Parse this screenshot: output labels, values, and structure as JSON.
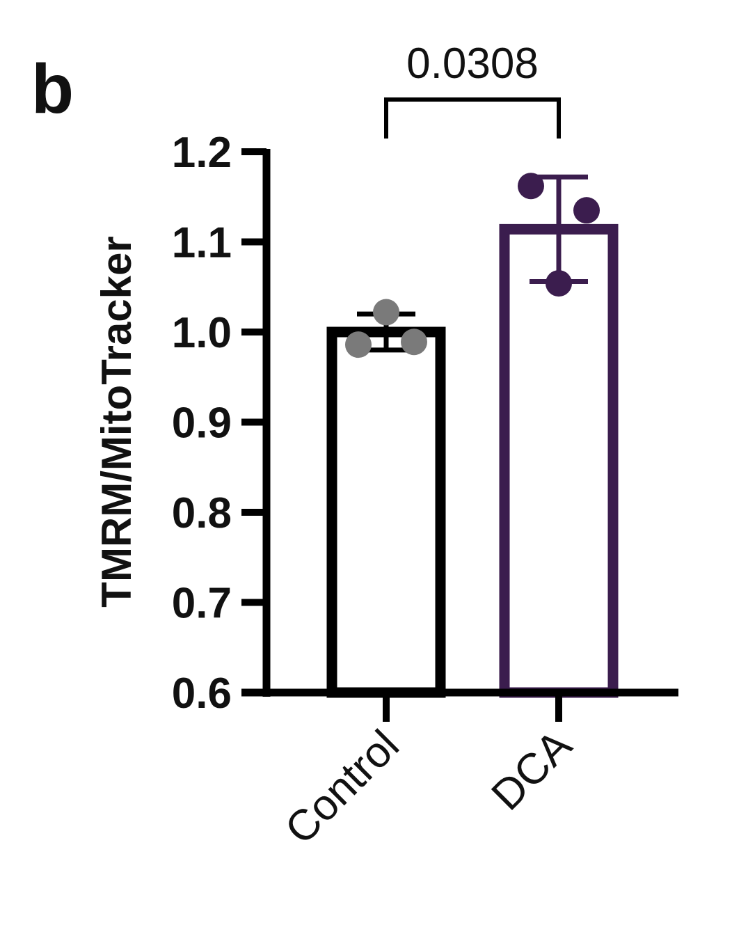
{
  "panel_label": "b",
  "chart_data": {
    "type": "bar",
    "title": "",
    "xlabel": "",
    "ylabel": "TMRM/MitoTracker",
    "ylim": [
      0.6,
      1.2
    ],
    "yticks": [
      0.6,
      0.7,
      0.8,
      0.9,
      1.0,
      1.1,
      1.2
    ],
    "ytick_labels": [
      "0.6",
      "0.7",
      "0.8",
      "0.9",
      "1.0",
      "1.1",
      "1.2"
    ],
    "categories": [
      "Control",
      "DCA"
    ],
    "values": [
      1.0,
      1.114
    ],
    "error": [
      {
        "low": 0.98,
        "high": 1.02
      },
      {
        "low": 1.056,
        "high": 1.172
      }
    ],
    "points": [
      [
        1.022,
        0.986,
        0.989
      ],
      [
        1.162,
        1.054,
        1.135
      ]
    ],
    "colors": {
      "Control": "#000000",
      "DCA": "#3b1d4e",
      "control_points": "#7a7a7a"
    },
    "grid": false,
    "annotations": [
      {
        "type": "significance",
        "between": [
          "Control",
          "DCA"
        ],
        "text": "0.0308"
      }
    ]
  }
}
